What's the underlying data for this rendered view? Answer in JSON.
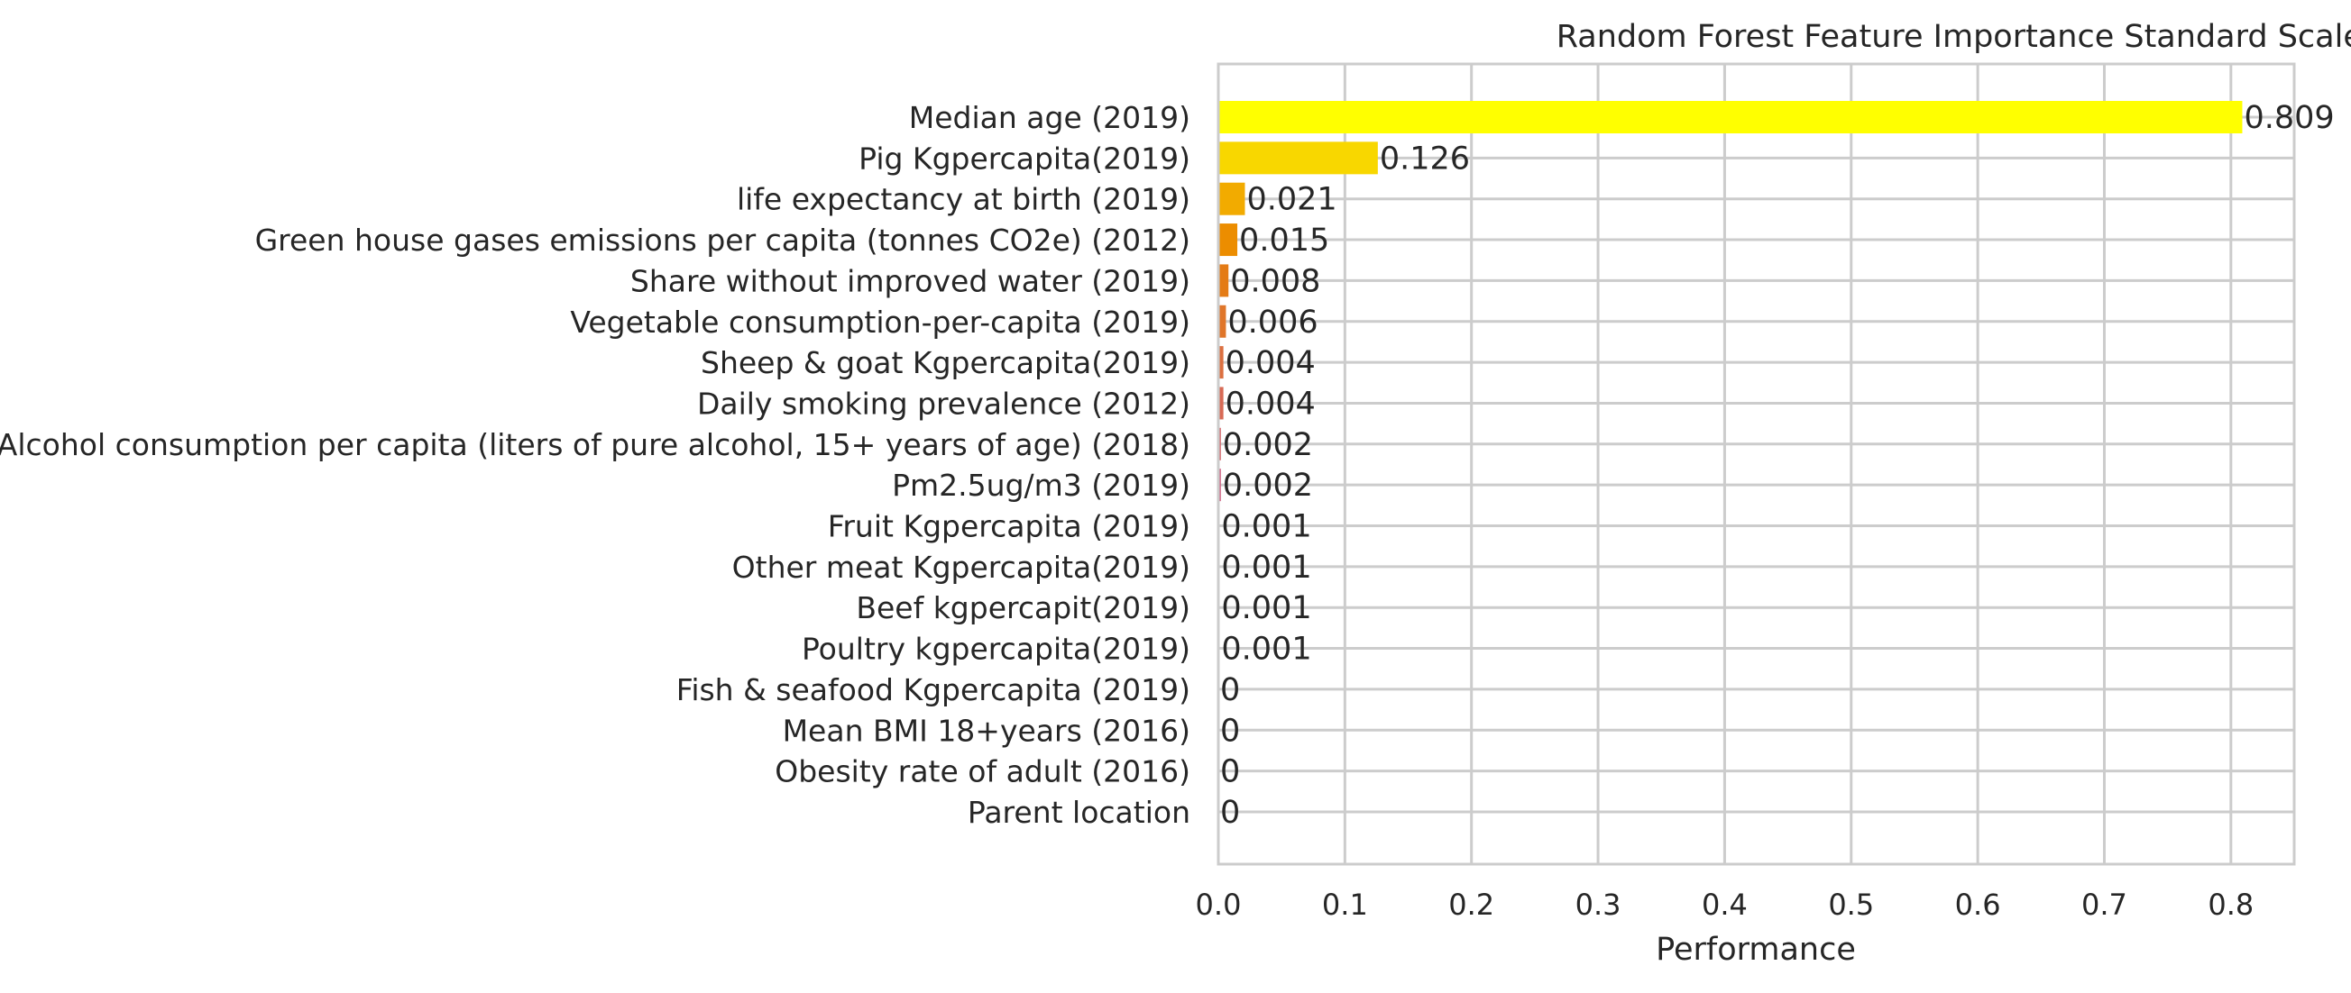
{
  "chart_data": {
    "type": "bar",
    "orientation": "horizontal",
    "title": "Random Forest Feature Importance Standard Scaler",
    "xlabel": "Performance",
    "ylabel": "",
    "xlim": [
      0,
      0.85
    ],
    "xticks": [
      0.0,
      0.1,
      0.2,
      0.3,
      0.4,
      0.5,
      0.6,
      0.7,
      0.8
    ],
    "xtick_labels": [
      "0.0",
      "0.1",
      "0.2",
      "0.3",
      "0.4",
      "0.5",
      "0.6",
      "0.7",
      "0.8"
    ],
    "grid": true,
    "categories": [
      "Median age (2019)",
      "Pig Kgpercapita(2019)",
      "life expectancy at birth (2019)",
      "Green house gases emissions per capita (tonnes CO2e) (2012)",
      "Share without improved water (2019)",
      "Vegetable consumption-per-capita (2019)",
      "Sheep & goat Kgpercapita(2019)",
      "Daily smoking prevalence (2012)",
      "Alcohol consumption per capita (liters of pure alcohol, 15+ years of age) (2018)",
      "Pm2.5ug/m3 (2019)",
      "Fruit Kgpercapita (2019)",
      "Other meat Kgpercapita(2019)",
      "Beef kgpercapit(2019)",
      "Poultry kgpercapita(2019)",
      "Fish & seafood Kgpercapita (2019)",
      "Mean BMI 18+years (2016)",
      "Obesity rate of adult (2016)",
      "Parent location"
    ],
    "values": [
      0.809,
      0.126,
      0.021,
      0.015,
      0.008,
      0.006,
      0.004,
      0.004,
      0.002,
      0.002,
      0.001,
      0.001,
      0.001,
      0.001,
      0,
      0,
      0,
      0
    ],
    "value_labels": [
      "0.809",
      "0.126",
      "0.021",
      "0.015",
      "0.008",
      "0.006",
      "0.004",
      "0.004",
      "0.002",
      "0.002",
      "0.001",
      "0.001",
      "0.001",
      "0.001",
      "0",
      "0",
      "0",
      "0"
    ],
    "colors": [
      "#ffff00",
      "#f8d700",
      "#f2ab00",
      "#ec8d00",
      "#e47b15",
      "#e0762a",
      "#dc7040",
      "#d86a55",
      "#d4646a",
      "#cf5e80",
      "#cb5895",
      "#c752aa",
      "#c34cbf",
      "#bf46d4",
      "#bb40e9",
      "#b73aff",
      "#b334ff",
      "#af2eff"
    ]
  }
}
